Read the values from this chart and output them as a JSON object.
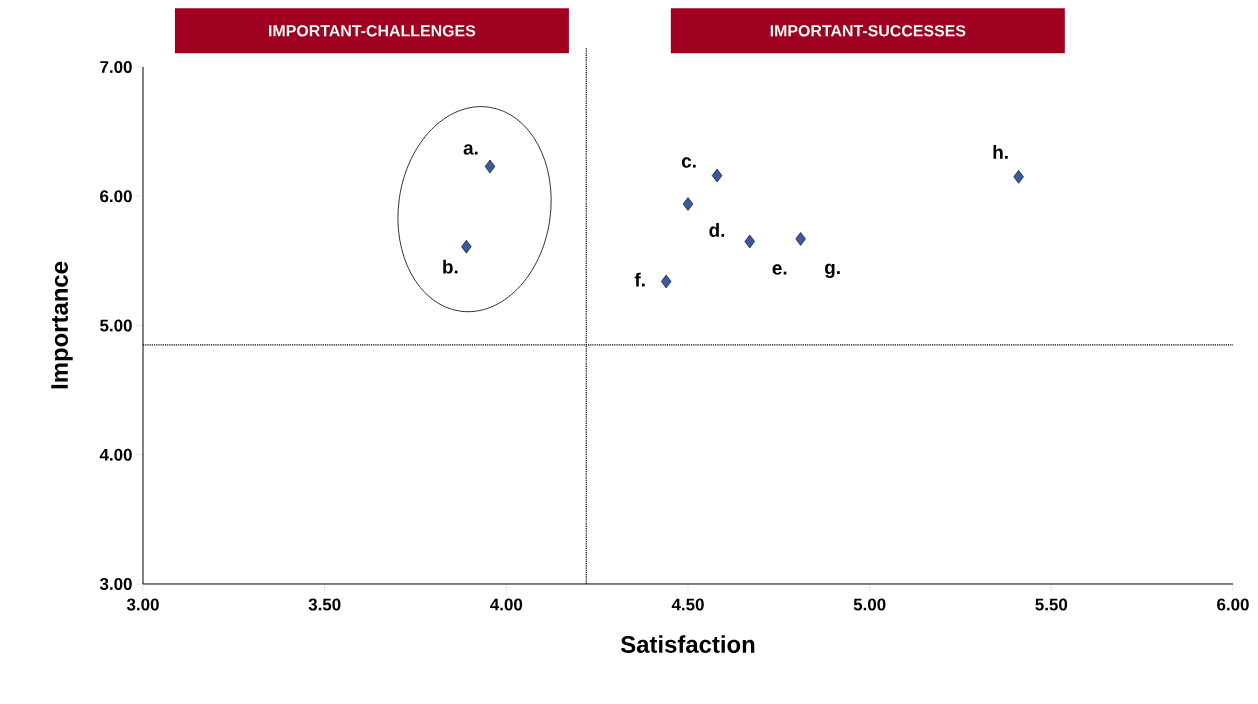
{
  "chart_data": {
    "type": "scatter",
    "xlabel": "Satisfaction",
    "ylabel": "Importance",
    "x": [
      3.955,
      3.89,
      4.58,
      4.5,
      4.67,
      4.81,
      4.44,
      5.41
    ],
    "values": [
      6.23,
      5.61,
      6.16,
      5.94,
      5.65,
      5.67,
      5.34,
      6.15
    ],
    "color": "#3a5a9e",
    "marker": "diamond",
    "xlim": [
      3.0,
      6.0
    ],
    "xticks": [
      {
        "value": 3,
        "label": "3.00"
      },
      {
        "value": 3.5,
        "label": "3.50"
      },
      {
        "value": 4,
        "label": "4.00"
      },
      {
        "value": 4.5,
        "label": "4.50"
      },
      {
        "value": 5,
        "label": "5.00"
      },
      {
        "value": 5.5,
        "label": "5.50"
      },
      {
        "value": 6,
        "label": "6.00"
      }
    ],
    "ylim": [
      3.0,
      7.0
    ],
    "yticks": [
      {
        "value": 3,
        "label": "3.00"
      },
      {
        "value": 4,
        "label": "4.00"
      },
      {
        "value": 5,
        "label": "5.00"
      },
      {
        "value": 6,
        "label": "6.00"
      },
      {
        "value": 7,
        "label": "7.00"
      }
    ],
    "ref_lines": [
      {
        "axis": "x",
        "value": 4.22,
        "line_style": "dotted"
      },
      {
        "axis": "y",
        "value": 4.85,
        "line_style": "dotted"
      }
    ],
    "annotations": [
      "IMPORTANT-CHALLENGES",
      "IMPORTANT-SUCCESSES",
      {
        "text": "a.",
        "x": 3.955,
        "y": 6.23
      },
      {
        "text": "b.",
        "x": 3.89,
        "y": 5.61
      },
      {
        "text": "c.",
        "x": 4.58,
        "y": 6.16
      },
      {
        "text": "d.",
        "x": 4.5,
        "y": 5.94
      },
      {
        "text": "e.",
        "x": 4.67,
        "y": 5.65
      },
      {
        "text": "f.",
        "x": 4.44,
        "y": 5.34
      },
      {
        "text": "g.",
        "x": 4.81,
        "y": 5.67
      },
      {
        "text": "h.",
        "x": 5.41,
        "y": 6.15
      }
    ]
  }
}
